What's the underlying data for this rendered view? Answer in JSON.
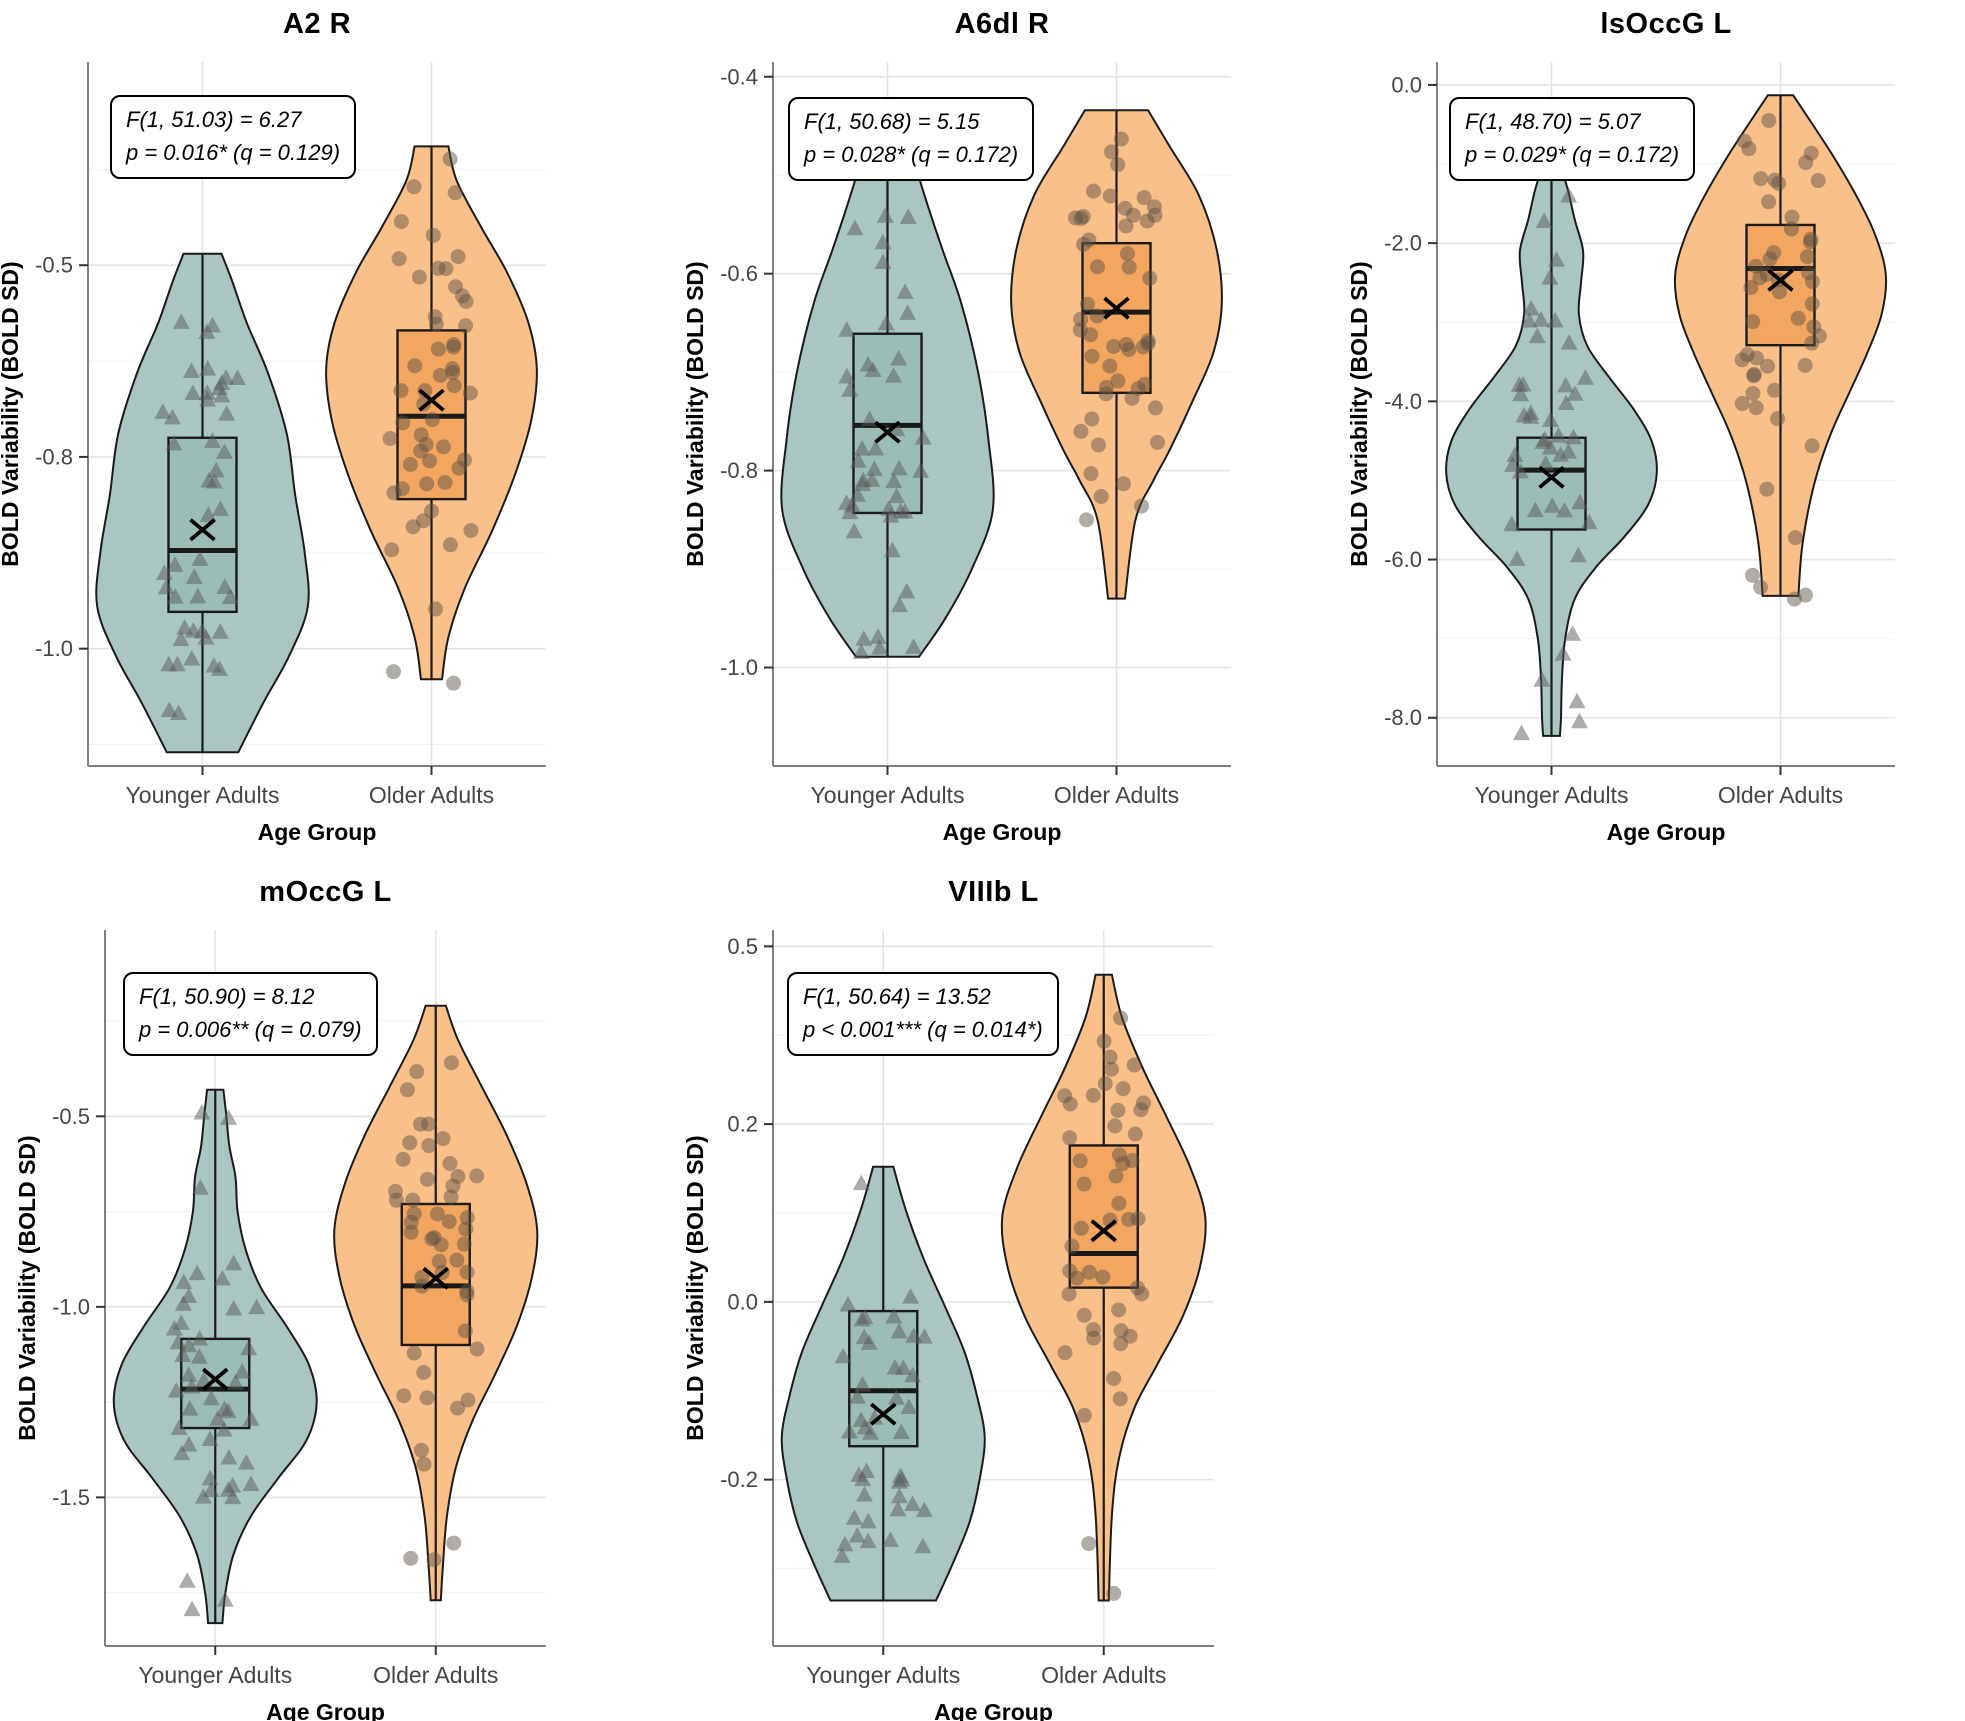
{
  "figure_type": "violin-box-jitter small multiples",
  "y_axis_title": "BOLD Variability (BOLD SD)",
  "x_axis_title": "Age Group",
  "groups": [
    "Younger Adults",
    "Older Adults"
  ],
  "colors": {
    "younger_violin_fill": "#A9C6C2",
    "younger_box_fill": "#9CBCB6",
    "older_violin_fill": "#F9C08A",
    "older_box_fill": "#F2A660",
    "shape_outline": "#1A1A1A",
    "triangle_point": "rgba(90,90,90,0.50)",
    "circle_point": "rgba(95,82,68,0.48)",
    "grid_major": "#E3E3E3",
    "grid_minor": "#F0F0F0",
    "axis_line": "#7F7F7F",
    "tick_mark": "#333333",
    "tick_label": "#454545",
    "title_color": "#000000"
  },
  "chart_data": {
    "type": "violin",
    "shared": {
      "categories": [
        "Younger Adults",
        "Older Adults"
      ],
      "ylabel": "BOLD Variability (BOLD SD)",
      "xlabel": "Age Group",
      "grid": "major+minor horizontal, major vertical at categories",
      "legend": "none; younger = teal violins with triangle points, older = orange violins with circle points; box shows IQR, thick line = median, X = mean"
    },
    "panels": [
      {
        "title": "A2 R",
        "stats": {
          "line1": "F(1, 51.03) = 6.27",
          "line2": "p = 0.016* (q = 0.129)"
        },
        "y_domain": [
          -0.235,
          -1.153
        ],
        "ticks": [
          {
            "v": -0.5,
            "label": "-0.5"
          },
          {
            "v": -0.75,
            "label": "-0.8"
          },
          {
            "v": -1.0,
            "label": "-1.0"
          }
        ],
        "groups": [
          {
            "name": "Younger Adults",
            "marker": "triangle",
            "seed": 3,
            "n_points": 46,
            "violin": [
              [
                -0.485,
                0.18
              ],
              [
                -0.52,
                0.28
              ],
              [
                -0.575,
                0.42
              ],
              [
                -0.64,
                0.62
              ],
              [
                -0.72,
                0.8
              ],
              [
                -0.8,
                0.88
              ],
              [
                -0.875,
                0.97
              ],
              [
                -0.945,
                1.0
              ],
              [
                -1.01,
                0.82
              ],
              [
                -1.07,
                0.58
              ],
              [
                -1.135,
                0.34
              ]
            ],
            "box": {
              "q3": -0.725,
              "q1": -0.952,
              "median": -0.872,
              "mean": -0.845,
              "whisker_high": -0.49,
              "whisker_low": -1.13
            },
            "outliers": []
          },
          {
            "name": "Older Adults",
            "marker": "circle",
            "seed": 14,
            "n_points": 50,
            "violin": [
              [
                -0.345,
                0.16
              ],
              [
                -0.39,
                0.24
              ],
              [
                -0.45,
                0.47
              ],
              [
                -0.51,
                0.72
              ],
              [
                -0.575,
                0.92
              ],
              [
                -0.635,
                1.0
              ],
              [
                -0.7,
                0.95
              ],
              [
                -0.77,
                0.8
              ],
              [
                -0.845,
                0.58
              ],
              [
                -0.92,
                0.32
              ],
              [
                -0.985,
                0.16
              ],
              [
                -1.04,
                0.1
              ]
            ],
            "box": {
              "q3": -0.585,
              "q1": -0.805,
              "median": -0.697,
              "mean": -0.676,
              "whisker_high": -0.35,
              "whisker_low": -1.0
            },
            "outliers": [
              [
                -1.03,
                -38
              ],
              [
                -1.045,
                22
              ]
            ]
          }
        ]
      },
      {
        "title": "A6dl R",
        "stats": {
          "line1": "F(1, 50.68) = 5.15",
          "line2": "p = 0.028* (q = 0.172)"
        },
        "y_domain": [
          -0.385,
          -1.1
        ],
        "ticks": [
          {
            "v": -0.4,
            "label": "-0.4"
          },
          {
            "v": -0.6,
            "label": "-0.6"
          },
          {
            "v": -0.8,
            "label": "-0.8"
          },
          {
            "v": -1.0,
            "label": "-1.0"
          }
        ],
        "groups": [
          {
            "name": "Younger Adults",
            "marker": "triangle",
            "seed": 5,
            "n_points": 46,
            "violin": [
              [
                -0.474,
                0.22
              ],
              [
                -0.52,
                0.35
              ],
              [
                -0.575,
                0.52
              ],
              [
                -0.63,
                0.7
              ],
              [
                -0.7,
                0.86
              ],
              [
                -0.77,
                0.96
              ],
              [
                -0.84,
                1.0
              ],
              [
                -0.9,
                0.8
              ],
              [
                -0.95,
                0.55
              ],
              [
                -0.989,
                0.3
              ]
            ],
            "box": {
              "q3": -0.661,
              "q1": -0.843,
              "median": -0.754,
              "mean": -0.761,
              "whisker_high": -0.474,
              "whisker_low": -0.989
            },
            "outliers": []
          },
          {
            "name": "Older Adults",
            "marker": "circle",
            "seed": 9,
            "n_points": 48,
            "violin": [
              [
                -0.434,
                0.3
              ],
              [
                -0.47,
                0.5
              ],
              [
                -0.52,
                0.78
              ],
              [
                -0.575,
                0.95
              ],
              [
                -0.63,
                1.0
              ],
              [
                -0.68,
                0.92
              ],
              [
                -0.73,
                0.72
              ],
              [
                -0.78,
                0.5
              ],
              [
                -0.81,
                0.35
              ],
              [
                -0.85,
                0.18
              ],
              [
                -0.93,
                0.08
              ]
            ],
            "box": {
              "q3": -0.569,
              "q1": -0.721,
              "median": -0.639,
              "mean": -0.635,
              "whisker_high": -0.434,
              "whisker_low": -0.93
            },
            "outliers": [
              [
                -0.85,
                -30
              ],
              [
                -0.836,
                25
              ]
            ]
          }
        ]
      },
      {
        "title": "lsOccG L",
        "stats": {
          "line1": "F(1, 48.70) = 5.07",
          "line2": "p = 0.029* (q = 0.172)"
        },
        "y_domain": [
          0.29,
          -8.61
        ],
        "ticks": [
          {
            "v": 0.0,
            "label": "0.0"
          },
          {
            "v": -2.0,
            "label": "-2.0"
          },
          {
            "v": -4.0,
            "label": "-4.0"
          },
          {
            "v": -6.0,
            "label": "-6.0"
          },
          {
            "v": -8.0,
            "label": "-8.0"
          }
        ],
        "groups": [
          {
            "name": "Younger Adults",
            "marker": "triangle",
            "seed": 21,
            "n_points": 44,
            "violin": [
              [
                -1.08,
                0.1
              ],
              [
                -1.35,
                0.16
              ],
              [
                -1.7,
                0.22
              ],
              [
                -2.1,
                0.3
              ],
              [
                -2.5,
                0.28
              ],
              [
                -2.9,
                0.26
              ],
              [
                -3.3,
                0.34
              ],
              [
                -3.7,
                0.55
              ],
              [
                -4.1,
                0.78
              ],
              [
                -4.5,
                0.95
              ],
              [
                -4.9,
                1.0
              ],
              [
                -5.3,
                0.92
              ],
              [
                -5.7,
                0.7
              ],
              [
                -6.1,
                0.42
              ],
              [
                -6.5,
                0.22
              ],
              [
                -7.0,
                0.13
              ],
              [
                -7.5,
                0.1
              ],
              [
                -8.0,
                0.09
              ],
              [
                -8.23,
                0.08
              ]
            ],
            "box": {
              "q3": -4.46,
              "q1": -5.62,
              "median": -4.87,
              "mean": -4.96,
              "whisker_high": -1.18,
              "whisker_low": -7.19
            },
            "outliers": [
              [
                -8.05,
                28
              ],
              [
                -8.2,
                -30
              ]
            ]
          },
          {
            "name": "Older Adults",
            "marker": "circle",
            "seed": 8,
            "n_points": 46,
            "violin": [
              [
                -0.13,
                0.12
              ],
              [
                -0.45,
                0.28
              ],
              [
                -0.9,
                0.5
              ],
              [
                -1.4,
                0.72
              ],
              [
                -1.9,
                0.9
              ],
              [
                -2.4,
                1.0
              ],
              [
                -2.9,
                0.96
              ],
              [
                -3.4,
                0.82
              ],
              [
                -3.9,
                0.65
              ],
              [
                -4.4,
                0.48
              ],
              [
                -4.9,
                0.35
              ],
              [
                -5.4,
                0.26
              ],
              [
                -5.9,
                0.2
              ],
              [
                -6.46,
                0.17
              ]
            ],
            "box": {
              "q3": -1.77,
              "q1": -3.29,
              "median": -2.32,
              "mean": -2.47,
              "whisker_high": -0.15,
              "whisker_low": -6.4
            },
            "outliers": [
              [
                -6.2,
                -28
              ],
              [
                -6.35,
                -20
              ],
              [
                -6.45,
                25
              ],
              [
                -6.5,
                14
              ]
            ]
          }
        ]
      },
      {
        "title": "mOccG L",
        "stats": {
          "line1": "F(1, 50.90) = 8.12",
          "line2": "p = 0.006** (q = 0.079)"
        },
        "y_domain": [
          -0.011,
          -1.89
        ],
        "ticks": [
          {
            "v": -0.5,
            "label": "-0.5"
          },
          {
            "v": -1.0,
            "label": "-1.0"
          },
          {
            "v": -1.5,
            "label": "-1.5"
          }
        ],
        "groups": [
          {
            "name": "Younger Adults",
            "marker": "triangle",
            "seed": 13,
            "n_points": 46,
            "violin": [
              [
                -0.43,
                0.08
              ],
              [
                -0.5,
                0.11
              ],
              [
                -0.58,
                0.14
              ],
              [
                -0.66,
                0.2
              ],
              [
                -0.75,
                0.22
              ],
              [
                -0.85,
                0.3
              ],
              [
                -0.95,
                0.45
              ],
              [
                -1.05,
                0.7
              ],
              [
                -1.15,
                0.92
              ],
              [
                -1.25,
                1.0
              ],
              [
                -1.35,
                0.9
              ],
              [
                -1.45,
                0.62
              ],
              [
                -1.55,
                0.35
              ],
              [
                -1.65,
                0.18
              ],
              [
                -1.75,
                0.1
              ],
              [
                -1.83,
                0.07
              ]
            ],
            "box": {
              "q3": -1.084,
              "q1": -1.318,
              "median": -1.216,
              "mean": -1.19,
              "whisker_high": -0.45,
              "whisker_low": -1.72
            },
            "outliers": [
              [
                -1.72,
                -28
              ],
              [
                -1.77,
                10
              ]
            ]
          },
          {
            "name": "Older Adults",
            "marker": "circle",
            "seed": 4,
            "n_points": 48,
            "violin": [
              [
                -0.21,
                0.1
              ],
              [
                -0.3,
                0.22
              ],
              [
                -0.42,
                0.45
              ],
              [
                -0.55,
                0.7
              ],
              [
                -0.68,
                0.9
              ],
              [
                -0.8,
                1.0
              ],
              [
                -0.92,
                0.95
              ],
              [
                -1.05,
                0.8
              ],
              [
                -1.18,
                0.58
              ],
              [
                -1.3,
                0.36
              ],
              [
                -1.42,
                0.2
              ],
              [
                -1.55,
                0.11
              ],
              [
                -1.68,
                0.07
              ],
              [
                -1.77,
                0.05
              ]
            ],
            "box": {
              "q3": -0.73,
              "q1": -1.1,
              "median": -0.945,
              "mean": -0.925,
              "whisker_high": -0.22,
              "whisker_low": -1.73
            },
            "outliers": [
              [
                -1.66,
                -25
              ],
              [
                -1.62,
                18
              ]
            ]
          }
        ]
      },
      {
        "title": "VIIIb L",
        "stats": {
          "line1": "F(1, 50.64) = 13.52",
          "line2": "p < 0.001*** (q = 0.014*)"
        },
        "y_domain": [
          0.523,
          -0.484
        ],
        "ticks": [
          {
            "v": 0.5,
            "label": "0.5"
          },
          {
            "v": 0.25,
            "label": "0.2"
          },
          {
            "v": 0.0,
            "label": "0.0"
          },
          {
            "v": -0.25,
            "label": "-0.2"
          }
        ],
        "groups": [
          {
            "name": "Younger Adults",
            "marker": "triangle",
            "seed": 17,
            "n_points": 44,
            "violin": [
              [
                0.19,
                0.1
              ],
              [
                0.13,
                0.22
              ],
              [
                0.06,
                0.4
              ],
              [
                -0.01,
                0.62
              ],
              [
                -0.07,
                0.8
              ],
              [
                -0.13,
                0.92
              ],
              [
                -0.19,
                1.0
              ],
              [
                -0.25,
                0.95
              ],
              [
                -0.31,
                0.85
              ],
              [
                -0.37,
                0.68
              ],
              [
                -0.42,
                0.52
              ]
            ],
            "box": {
              "q3": -0.013,
              "q1": -0.203,
              "median": -0.125,
              "mean": -0.158,
              "whisker_high": 0.14,
              "whisker_low": -0.42
            },
            "outliers": []
          },
          {
            "name": "Older Adults",
            "marker": "circle",
            "seed": 6,
            "n_points": 46,
            "violin": [
              [
                0.46,
                0.08
              ],
              [
                0.4,
                0.18
              ],
              [
                0.33,
                0.38
              ],
              [
                0.26,
                0.62
              ],
              [
                0.19,
                0.85
              ],
              [
                0.12,
                1.0
              ],
              [
                0.05,
                0.95
              ],
              [
                -0.02,
                0.78
              ],
              [
                -0.09,
                0.52
              ],
              [
                -0.15,
                0.3
              ],
              [
                -0.22,
                0.15
              ],
              [
                -0.3,
                0.08
              ],
              [
                -0.42,
                0.05
              ]
            ],
            "box": {
              "q3": 0.22,
              "q1": 0.02,
              "median": 0.068,
              "mean": 0.1,
              "whisker_high": 0.44,
              "whisker_low": -0.417
            },
            "outliers": [
              [
                -0.34,
                -15
              ],
              [
                -0.41,
                10
              ]
            ]
          }
        ]
      }
    ]
  }
}
